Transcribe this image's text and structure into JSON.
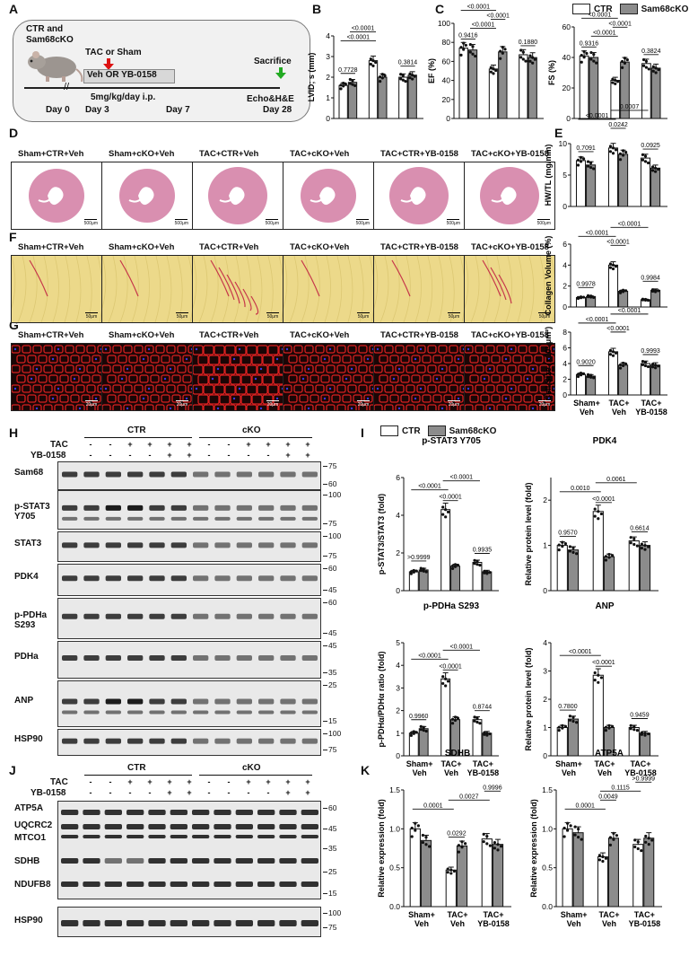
{
  "colors": {
    "ctr": "#ffffff",
    "cko": "#8c8c8c",
    "he": "#d98fb0",
    "pico": "#ecd98a",
    "wga": "#c21d1d"
  },
  "panels": [
    "A",
    "B",
    "C",
    "D",
    "E",
    "F",
    "G",
    "H",
    "I",
    "J",
    "K"
  ],
  "schematic": {
    "groups": "CTR and\nSam68cKO",
    "treatment": "TAC or Sham",
    "drug": "Veh OR YB-0158",
    "dose": "5mg/kg/day i.p.",
    "sacrifice": "Sacrifice",
    "endpoint": "Echo&H&E",
    "days": [
      "Day 0",
      "Day 3",
      "Day 7",
      "Day 28"
    ]
  },
  "legend": {
    "ctr": "CTR",
    "cko": "Sam68cKO"
  },
  "histology": {
    "groups": [
      "Sham+CTR+Veh",
      "Sham+cKO+Veh",
      "TAC+CTR+Veh",
      "TAC+cKO+Veh",
      "TAC+CTR+YB-0158",
      "TAC+cKO+YB-0158"
    ],
    "scale_d": [
      "500μm",
      "500μm",
      "500μm",
      "500μm",
      "500μm",
      "500μm"
    ],
    "scale_f": [
      "50μm",
      "50μm",
      "50μm",
      "50μm",
      "50μm",
      "50μm"
    ],
    "scale_g": [
      "20μm",
      "20μm",
      "20μm",
      "20μm",
      "20μm",
      "20μm"
    ]
  },
  "group_labels": [
    "Sham+\nVeh",
    "TAC+\nVeh",
    "TAC+\nYB-0158"
  ],
  "wb_h": {
    "headers": {
      "ctr": "CTR",
      "cko": "cKO",
      "tac": "TAC",
      "yb": "YB-0158"
    },
    "tac_signs": [
      "-",
      "-",
      "+",
      "+",
      "+",
      "+",
      "-",
      "-",
      "+",
      "+",
      "+",
      "+"
    ],
    "yb_signs": [
      "-",
      "-",
      "-",
      "-",
      "+",
      "+",
      "-",
      "-",
      "-",
      "-",
      "+",
      "+"
    ],
    "blots": [
      {
        "label": "Sam68",
        "mw": [
          "75",
          "60"
        ]
      },
      {
        "label": "p-STAT3\nY705",
        "mw": [
          "100",
          "75"
        ]
      },
      {
        "label": "STAT3",
        "mw": [
          "100",
          "75"
        ]
      },
      {
        "label": "PDK4",
        "mw": [
          "60",
          "45"
        ]
      },
      {
        "label": "p-PDHa\nS293",
        "mw": [
          "60",
          "45"
        ]
      },
      {
        "label": "PDHa",
        "mw": [
          "45",
          "35"
        ]
      },
      {
        "label": "ANP",
        "mw": [
          "25",
          "15"
        ]
      },
      {
        "label": "HSP90",
        "mw": [
          "100",
          "75"
        ]
      }
    ]
  },
  "wb_j": {
    "labels": [
      "ATP5A",
      "UQCRC2",
      "MTCO1",
      "SDHB",
      "NDUFB8",
      "HSP90"
    ],
    "mw_main": [
      "60",
      "45",
      "35",
      "25",
      "15"
    ],
    "mw_hsp": [
      "100",
      "75"
    ]
  },
  "chart_data": [
    {
      "id": "B",
      "type": "bar",
      "title": "",
      "xlabel": "",
      "ylabel": "LVID; s (mm)",
      "ylim": [
        0,
        4
      ],
      "yticks": [
        "0",
        "1",
        "2",
        "3",
        "4"
      ],
      "categories": [
        "Sham+Veh",
        "TAC+Veh",
        "TAC+YB-0158"
      ],
      "series": [
        {
          "name": "CTR",
          "values": [
            1.6,
            2.8,
            2.0
          ]
        },
        {
          "name": "Sam68cKO",
          "values": [
            1.75,
            2.0,
            2.1
          ]
        }
      ],
      "pvalues": [
        "0.7728",
        "<0.0001",
        "<0.0001",
        "0.3814"
      ]
    },
    {
      "id": "C1",
      "type": "bar",
      "title": "",
      "xlabel": "",
      "ylabel": "EF (%)",
      "ylim": [
        0,
        100
      ],
      "yticks": [
        "0",
        "20",
        "40",
        "60",
        "80",
        "100"
      ],
      "categories": [
        "Sham+Veh",
        "TAC+Veh",
        "TAC+YB-0158"
      ],
      "series": [
        {
          "name": "CTR",
          "values": [
            74,
            52,
            67
          ]
        },
        {
          "name": "Sam68cKO",
          "values": [
            72,
            70,
            64
          ]
        }
      ],
      "pvalues": [
        "0.9416",
        "<0.0001",
        "<0.0001",
        "<0.0001",
        "0.1880"
      ]
    },
    {
      "id": "C2",
      "type": "bar",
      "title": "",
      "xlabel": "",
      "ylabel": "FS (%)",
      "ylim": [
        0,
        60
      ],
      "yticks": [
        "0",
        "20",
        "40",
        "60"
      ],
      "categories": [
        "Sham+Veh",
        "TAC+Veh",
        "TAC+YB-0158"
      ],
      "series": [
        {
          "name": "CTR",
          "values": [
            41,
            25,
            36
          ]
        },
        {
          "name": "Sam68cKO",
          "values": [
            40,
            37,
            33
          ]
        }
      ],
      "pvalues": [
        "0.9316",
        "<0.0001",
        "<0.0001",
        "<0.0001",
        "0.3824"
      ]
    },
    {
      "id": "E",
      "type": "bar",
      "title": "",
      "xlabel": "",
      "ylabel": "HW/TL (mg/mm)",
      "ylim": [
        0,
        10
      ],
      "yticks": [
        "0",
        "5",
        "10"
      ],
      "categories": [
        "Sham+Veh",
        "TAC+Veh",
        "TAC+YB-0158"
      ],
      "series": [
        {
          "name": "CTR",
          "values": [
            7.3,
            9.3,
            7.7
          ]
        },
        {
          "name": "Sam68cKO",
          "values": [
            6.6,
            8.3,
            6.1
          ]
        }
      ],
      "pvalues": [
        "0.7091",
        "<0.0001",
        "0.0242",
        "0.0007",
        "0.0925"
      ]
    },
    {
      "id": "F",
      "type": "bar",
      "title": "",
      "xlabel": "",
      "ylabel": "Collagen Volume (%)",
      "ylim": [
        0,
        6
      ],
      "yticks": [
        "0",
        "2",
        "4",
        "6"
      ],
      "categories": [
        "Sham+Veh",
        "TAC+Veh",
        "TAC+YB-0158"
      ],
      "series": [
        {
          "name": "CTR",
          "values": [
            0.9,
            4.0,
            0.7
          ]
        },
        {
          "name": "Sam68cKO",
          "values": [
            1.0,
            1.5,
            1.6
          ]
        }
      ],
      "pvalues": [
        "0.9978",
        "<0.0001",
        "<0.0001",
        "<0.0001",
        "0.9984"
      ]
    },
    {
      "id": "G",
      "type": "bar",
      "title": "",
      "xlabel": "",
      "ylabel": "Cell Size (x10² μm²)",
      "ylim": [
        0,
        8
      ],
      "yticks": [
        "0",
        "2",
        "4",
        "6",
        "8"
      ],
      "categories": [
        "Sham+Veh",
        "TAC+Veh",
        "TAC+YB-0158"
      ],
      "series": [
        {
          "name": "CTR",
          "values": [
            2.6,
            5.5,
            4.0
          ]
        },
        {
          "name": "Sam68cKO",
          "values": [
            2.4,
            3.8,
            3.8
          ]
        }
      ],
      "pvalues": [
        "0.9020",
        "<0.0001",
        "<0.0001",
        "<0.0001",
        "0.9993"
      ]
    },
    {
      "id": "I1",
      "type": "bar",
      "title": "p-STAT3 Y705",
      "xlabel": "",
      "ylabel": "p-STAT3/STAT3 (fold)",
      "ylim": [
        0,
        6
      ],
      "yticks": [
        "0",
        "2",
        "4",
        "6"
      ],
      "categories": [
        "Sham+Veh",
        "TAC+Veh",
        "TAC+YB-0158"
      ],
      "series": [
        {
          "name": "CTR",
          "values": [
            1.0,
            4.3,
            1.5
          ]
        },
        {
          "name": "Sam68cKO",
          "values": [
            1.1,
            1.3,
            1.0
          ]
        }
      ],
      "pvalues": [
        ">0.9999",
        "<0.0001",
        "<0.0001",
        "<0.0001",
        "0.9935"
      ]
    },
    {
      "id": "I2",
      "type": "bar",
      "title": "PDK4",
      "xlabel": "",
      "ylabel": "Relative protein level (fold)",
      "ylim": [
        0,
        2.5
      ],
      "yticks": [
        "0",
        "1",
        "2"
      ],
      "categories": [
        "Sham+Veh",
        "TAC+Veh",
        "TAC+YB-0158"
      ],
      "series": [
        {
          "name": "CTR",
          "values": [
            1.0,
            1.75,
            1.1
          ]
        },
        {
          "name": "Sam68cKO",
          "values": [
            0.9,
            0.75,
            1.0
          ]
        }
      ],
      "pvalues": [
        "0.9570",
        "0.0010",
        "<0.0001",
        "0.0061",
        "0.6614"
      ]
    },
    {
      "id": "I3",
      "type": "bar",
      "title": "p-PDHa S293",
      "xlabel": "",
      "ylabel": "p-PDHα/PDHα ratio (fold)",
      "ylim": [
        0,
        5
      ],
      "yticks": [
        "0",
        "1",
        "2",
        "3",
        "4",
        "5"
      ],
      "categories": [
        "Sham+Veh",
        "TAC+Veh",
        "TAC+YB-0158"
      ],
      "series": [
        {
          "name": "CTR",
          "values": [
            1.0,
            3.4,
            1.6
          ]
        },
        {
          "name": "Sam68cKO",
          "values": [
            1.2,
            1.6,
            1.0
          ]
        }
      ],
      "pvalues": [
        "0.9960",
        "<0.0001",
        "<0.0001",
        "<0.0001",
        "0.8744"
      ]
    },
    {
      "id": "I4",
      "type": "bar",
      "title": "ANP",
      "xlabel": "",
      "ylabel": "Relative protein level (fold)",
      "ylim": [
        0,
        4
      ],
      "yticks": [
        "0",
        "1",
        "2",
        "3",
        "4"
      ],
      "categories": [
        "Sham+Veh",
        "TAC+Veh",
        "TAC+YB-0158"
      ],
      "series": [
        {
          "name": "CTR",
          "values": [
            1.0,
            2.85,
            1.0
          ]
        },
        {
          "name": "Sam68cKO",
          "values": [
            1.3,
            1.0,
            0.8
          ]
        }
      ],
      "pvalues": [
        "0.7800",
        "<0.0001",
        "<0.0001",
        "0.9459"
      ]
    },
    {
      "id": "K1",
      "type": "bar",
      "title": "SDHB",
      "xlabel": "",
      "ylabel": "Relative expression (fold)",
      "ylim": [
        0,
        1.5
      ],
      "yticks": [
        "0.0",
        "0.5",
        "1.0",
        "1.5"
      ],
      "categories": [
        "Sham+Veh",
        "TAC+Veh",
        "TAC+YB-0158"
      ],
      "series": [
        {
          "name": "CTR",
          "values": [
            1.0,
            0.47,
            0.87
          ]
        },
        {
          "name": "Sam68cKO",
          "values": [
            0.85,
            0.78,
            0.8
          ]
        }
      ],
      "pvalues": [
        "0.0001",
        "0.0292",
        "0.0027",
        "0.9996"
      ]
    },
    {
      "id": "K2",
      "type": "bar",
      "title": "ATP5A",
      "xlabel": "",
      "ylabel": "Relative expression (fold)",
      "ylim": [
        0,
        1.5
      ],
      "yticks": [
        "0.0",
        "0.5",
        "1.0",
        "1.5"
      ],
      "categories": [
        "Sham+Veh",
        "TAC+Veh",
        "TAC+YB-0158"
      ],
      "series": [
        {
          "name": "CTR",
          "values": [
            1.0,
            0.64,
            0.8
          ]
        },
        {
          "name": "Sam68cKO",
          "values": [
            0.95,
            0.88,
            0.88
          ]
        }
      ],
      "pvalues": [
        "0.0001",
        "0.0049",
        "0.1115",
        ">0.9999"
      ]
    }
  ]
}
